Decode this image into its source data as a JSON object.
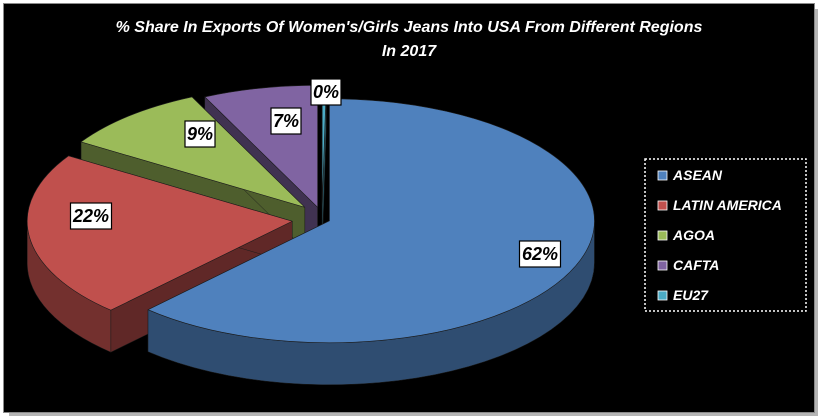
{
  "chart_data": {
    "type": "pie",
    "title": "% Share In Exports Of Women's/Girls Jeans Into USA From Different Regions",
    "subtitle": "In 2017",
    "categories": [
      "ASEAN",
      "LATIN AMERICA",
      "AGOA",
      "CAFTA",
      "EU27"
    ],
    "values": [
      62,
      22,
      9,
      7,
      0
    ],
    "labels": [
      "62%",
      "22%",
      "9%",
      "7%",
      "0%"
    ],
    "colors": [
      "#4f81bd",
      "#c0504d",
      "#9bbb59",
      "#8064a2",
      "#4bacc6"
    ],
    "legend_position": "right",
    "style": "3d-exploded"
  }
}
